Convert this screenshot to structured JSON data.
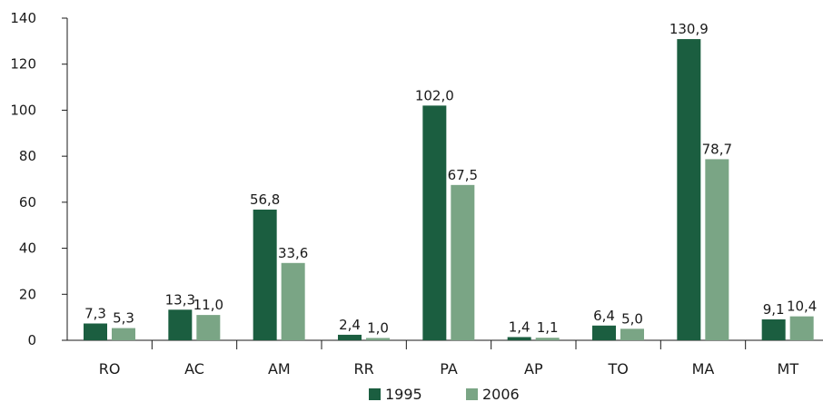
{
  "chart_data": {
    "type": "bar",
    "categories": [
      "RO",
      "AC",
      "AM",
      "RR",
      "PA",
      "AP",
      "TO",
      "MA",
      "MT"
    ],
    "series": [
      {
        "name": "1995",
        "color": "#1b5e40",
        "values": [
          7.3,
          13.3,
          56.8,
          2.4,
          102.0,
          1.4,
          6.4,
          130.9,
          9.1
        ],
        "labels": [
          "7,3",
          "13,3",
          "56,8",
          "2,4",
          "102,0",
          "1,4",
          "6,4",
          "130,9",
          "9,1"
        ]
      },
      {
        "name": "2006",
        "color": "#7aa585",
        "values": [
          5.3,
          11.0,
          33.6,
          1.0,
          67.5,
          1.1,
          5.0,
          78.7,
          10.4
        ],
        "labels": [
          "5,3",
          "11,0",
          "33,6",
          "1,0",
          "67,5",
          "1,1",
          "5,0",
          "78,7",
          "10,4"
        ]
      }
    ],
    "yticks": [
      0,
      20,
      40,
      60,
      80,
      100,
      120,
      140
    ],
    "ylim": [
      0,
      140
    ],
    "grid": false,
    "legend_position": "bottom-center"
  }
}
